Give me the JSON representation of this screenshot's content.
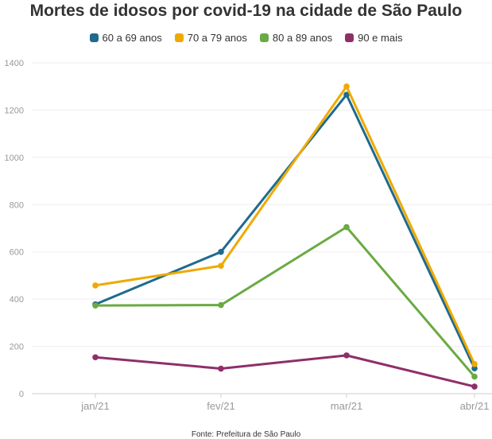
{
  "chart_data": {
    "type": "line",
    "title": "Mortes de idosos por covid-19 na cidade de São Paulo",
    "categories": [
      "jan/21",
      "fev/21",
      "mar/21",
      "abr/21"
    ],
    "series": [
      {
        "name": "60 a 69 anos",
        "color": "#1f6a8e",
        "values": [
          378,
          600,
          1265,
          107
        ]
      },
      {
        "name": "70 a 79 anos",
        "color": "#eeaa00",
        "values": [
          458,
          541,
          1300,
          125
        ]
      },
      {
        "name": "80 a 89 anos",
        "color": "#6aaa42",
        "values": [
          373,
          375,
          705,
          72
        ]
      },
      {
        "name": "90 e mais",
        "color": "#8e2f6a",
        "values": [
          154,
          106,
          162,
          30
        ]
      }
    ],
    "ylim": [
      0,
      1400
    ],
    "yticks": [
      0,
      200,
      400,
      600,
      800,
      1000,
      1200,
      1400
    ],
    "grid": true,
    "legend_position": "top-center",
    "source": "Fonte: Prefeitura de São Paulo"
  }
}
